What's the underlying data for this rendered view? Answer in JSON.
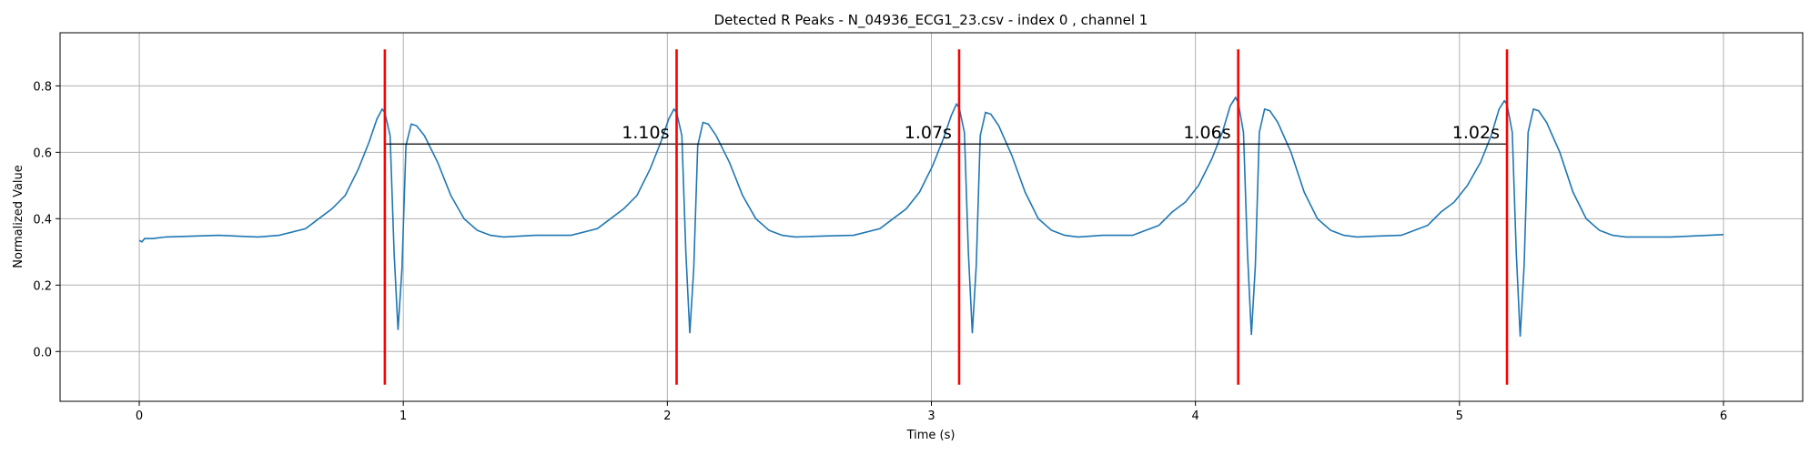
{
  "chart_data": {
    "type": "line",
    "title": "Detected R Peaks - N_04936_ECG1_23.csv - index 0 , channel 1",
    "xlabel": "Time (s)",
    "ylabel": "Normalized Value",
    "x": [
      0,
      0.01,
      0.02,
      0.05,
      0.1,
      0.3,
      0.45,
      0.53,
      0.63,
      0.68,
      0.73,
      0.78,
      0.83,
      0.87,
      0.9,
      0.92,
      0.93,
      0.95,
      0.965,
      0.98,
      0.995,
      1.01,
      1.03,
      1.05,
      1.08,
      1.13,
      1.18,
      1.23,
      1.28,
      1.33,
      1.38,
      1.5,
      1.635,
      1.735,
      1.785,
      1.835,
      1.885,
      1.935,
      1.975,
      2.005,
      2.025,
      2.035,
      2.055,
      2.07,
      2.085,
      2.1,
      2.115,
      2.135,
      2.155,
      2.185,
      2.235,
      2.285,
      2.335,
      2.385,
      2.435,
      2.485,
      2.6,
      2.705,
      2.805,
      2.855,
      2.905,
      2.955,
      3.005,
      3.045,
      3.075,
      3.095,
      3.105,
      3.125,
      3.14,
      3.155,
      3.17,
      3.185,
      3.205,
      3.225,
      3.255,
      3.305,
      3.355,
      3.405,
      3.455,
      3.505,
      3.555,
      3.65,
      3.762,
      3.862,
      3.912,
      3.962,
      4.012,
      4.062,
      4.102,
      4.132,
      4.152,
      4.162,
      4.182,
      4.197,
      4.212,
      4.227,
      4.242,
      4.262,
      4.282,
      4.312,
      4.362,
      4.412,
      4.462,
      4.512,
      4.562,
      4.612,
      4.7,
      4.78,
      4.88,
      4.93,
      4.98,
      5.03,
      5.08,
      5.12,
      5.15,
      5.17,
      5.18,
      5.2,
      5.215,
      5.23,
      5.245,
      5.26,
      5.28,
      5.3,
      5.33,
      5.38,
      5.43,
      5.48,
      5.53,
      5.58,
      5.63,
      5.8,
      6.0
    ],
    "series": [
      {
        "name": "ECG",
        "color": "#1f77b4",
        "values": [
          0.335,
          0.33,
          0.34,
          0.34,
          0.345,
          0.35,
          0.345,
          0.35,
          0.37,
          0.4,
          0.43,
          0.47,
          0.55,
          0.63,
          0.7,
          0.73,
          0.72,
          0.65,
          0.3,
          0.065,
          0.25,
          0.62,
          0.685,
          0.68,
          0.65,
          0.57,
          0.47,
          0.4,
          0.365,
          0.35,
          0.345,
          0.35,
          0.35,
          0.37,
          0.4,
          0.43,
          0.47,
          0.55,
          0.63,
          0.7,
          0.73,
          0.72,
          0.65,
          0.3,
          0.055,
          0.25,
          0.62,
          0.69,
          0.685,
          0.65,
          0.57,
          0.47,
          0.4,
          0.365,
          0.35,
          0.345,
          0.348,
          0.35,
          0.37,
          0.4,
          0.43,
          0.48,
          0.56,
          0.64,
          0.71,
          0.745,
          0.735,
          0.66,
          0.3,
          0.055,
          0.26,
          0.65,
          0.72,
          0.715,
          0.68,
          0.59,
          0.48,
          0.4,
          0.365,
          0.35,
          0.345,
          0.35,
          0.35,
          0.38,
          0.42,
          0.45,
          0.5,
          0.58,
          0.66,
          0.74,
          0.765,
          0.75,
          0.66,
          0.3,
          0.05,
          0.26,
          0.66,
          0.73,
          0.725,
          0.69,
          0.6,
          0.48,
          0.4,
          0.365,
          0.35,
          0.345,
          0.348,
          0.35,
          0.38,
          0.42,
          0.45,
          0.5,
          0.57,
          0.65,
          0.73,
          0.755,
          0.745,
          0.66,
          0.3,
          0.045,
          0.26,
          0.66,
          0.73,
          0.725,
          0.69,
          0.6,
          0.48,
          0.4,
          0.365,
          0.35,
          0.345,
          0.345,
          0.352
        ]
      }
    ],
    "peaks": [
      0.93,
      2.035,
      3.105,
      4.162,
      5.18
    ],
    "peak_color": "#ff0000",
    "peak_line_range": [
      -0.1,
      0.91
    ],
    "interval_labels": [
      "1.10s",
      "1.07s",
      "1.06s",
      "1.02s"
    ],
    "interval_line_y": 0.625,
    "interval_tick_bottom": 0.58,
    "xlim": [
      -0.3,
      6.3
    ],
    "ylim": [
      -0.15,
      0.96
    ],
    "xticks": [
      0,
      1,
      2,
      3,
      4,
      5,
      6
    ],
    "yticks": [
      {
        "value": 0,
        "label": "0.0"
      },
      {
        "value": 0.2,
        "label": "0.2"
      },
      {
        "value": 0.4,
        "label": "0.4"
      },
      {
        "value": 0.6,
        "label": "0.6"
      },
      {
        "value": 0.8,
        "label": "0.8"
      }
    ],
    "grid": true
  }
}
